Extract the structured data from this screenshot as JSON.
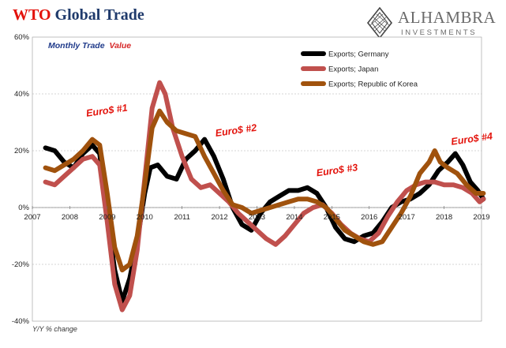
{
  "header": {
    "title_part1": "WTO",
    "title_part2": "Global Trade"
  },
  "logo": {
    "name": "ALHAMBRA",
    "tagline": "INVESTMENTS"
  },
  "subtitle": {
    "part1": "Monthly Trade",
    "part2": "Value",
    "colors": {
      "part1": "#1f3a8a",
      "part2": "#d62728"
    }
  },
  "footnote": "Y/Y % change",
  "chart_data": {
    "type": "line",
    "title": "WTO Global Trade",
    "subtitle": "Monthly Trade Value",
    "ylabel": "Y/Y % change",
    "xlabel": "",
    "xlim": [
      2007,
      2019
    ],
    "ylim": [
      -40,
      60
    ],
    "x_ticks": [
      "2007",
      "2008",
      "2009",
      "2010",
      "2011",
      "2012",
      "2013",
      "2014",
      "2015",
      "2016",
      "2017",
      "2018",
      "2019"
    ],
    "x_tick_values": [
      2007,
      2008,
      2009,
      2010,
      2011,
      2012,
      2013,
      2014,
      2015,
      2016,
      2017,
      2018,
      2019
    ],
    "y_ticks": [
      "-40%",
      "-20%",
      "0%",
      "20%",
      "40%",
      "60%"
    ],
    "y_tick_values": [
      -40,
      -20,
      0,
      20,
      40,
      60
    ],
    "grid": "horizontal dashed",
    "legend_position": "top-right",
    "series": [
      {
        "name": "Exports; Germany",
        "color": "#000000",
        "points": [
          [
            2007.35,
            21
          ],
          [
            2007.6,
            20
          ],
          [
            2007.85,
            16
          ],
          [
            2008.1,
            14
          ],
          [
            2008.35,
            19
          ],
          [
            2008.6,
            22
          ],
          [
            2008.8,
            19
          ],
          [
            2009.0,
            -3
          ],
          [
            2009.2,
            -22
          ],
          [
            2009.4,
            -33
          ],
          [
            2009.6,
            -25
          ],
          [
            2009.8,
            -12
          ],
          [
            2010.0,
            5
          ],
          [
            2010.15,
            14
          ],
          [
            2010.35,
            15
          ],
          [
            2010.6,
            11
          ],
          [
            2010.85,
            10
          ],
          [
            2011.1,
            17
          ],
          [
            2011.35,
            20
          ],
          [
            2011.6,
            24
          ],
          [
            2011.85,
            18
          ],
          [
            2012.1,
            10
          ],
          [
            2012.35,
            0
          ],
          [
            2012.6,
            -6
          ],
          [
            2012.85,
            -8
          ],
          [
            2013.1,
            -2
          ],
          [
            2013.35,
            2
          ],
          [
            2013.6,
            4
          ],
          [
            2013.85,
            6
          ],
          [
            2014.1,
            6
          ],
          [
            2014.35,
            7
          ],
          [
            2014.6,
            5
          ],
          [
            2014.85,
            0
          ],
          [
            2015.1,
            -7
          ],
          [
            2015.35,
            -11
          ],
          [
            2015.6,
            -12
          ],
          [
            2015.85,
            -10
          ],
          [
            2016.1,
            -9
          ],
          [
            2016.35,
            -5
          ],
          [
            2016.6,
            0
          ],
          [
            2016.85,
            2
          ],
          [
            2017.1,
            3
          ],
          [
            2017.35,
            5
          ],
          [
            2017.6,
            8
          ],
          [
            2017.85,
            13
          ],
          [
            2018.1,
            16
          ],
          [
            2018.3,
            19
          ],
          [
            2018.5,
            15
          ],
          [
            2018.7,
            9
          ],
          [
            2018.9,
            6
          ],
          [
            2019.05,
            3
          ]
        ]
      },
      {
        "name": "Exports; Japan",
        "color": "#c0504d",
        "points": [
          [
            2007.35,
            9
          ],
          [
            2007.6,
            8
          ],
          [
            2007.85,
            11
          ],
          [
            2008.1,
            14
          ],
          [
            2008.35,
            17
          ],
          [
            2008.6,
            18
          ],
          [
            2008.8,
            15
          ],
          [
            2009.0,
            -5
          ],
          [
            2009.2,
            -27
          ],
          [
            2009.4,
            -36
          ],
          [
            2009.6,
            -31
          ],
          [
            2009.8,
            -15
          ],
          [
            2010.0,
            10
          ],
          [
            2010.2,
            35
          ],
          [
            2010.4,
            44
          ],
          [
            2010.55,
            40
          ],
          [
            2010.75,
            28
          ],
          [
            2011.0,
            18
          ],
          [
            2011.25,
            10
          ],
          [
            2011.5,
            7
          ],
          [
            2011.75,
            8
          ],
          [
            2012.0,
            5
          ],
          [
            2012.25,
            2
          ],
          [
            2012.5,
            -2
          ],
          [
            2012.75,
            -5
          ],
          [
            2013.0,
            -8
          ],
          [
            2013.25,
            -11
          ],
          [
            2013.5,
            -13
          ],
          [
            2013.75,
            -10
          ],
          [
            2014.0,
            -6
          ],
          [
            2014.25,
            -2
          ],
          [
            2014.5,
            0
          ],
          [
            2014.75,
            1
          ],
          [
            2015.0,
            -2
          ],
          [
            2015.25,
            -6
          ],
          [
            2015.5,
            -9
          ],
          [
            2015.75,
            -11
          ],
          [
            2016.0,
            -12
          ],
          [
            2016.25,
            -9
          ],
          [
            2016.5,
            -3
          ],
          [
            2016.75,
            2
          ],
          [
            2017.0,
            6
          ],
          [
            2017.25,
            8
          ],
          [
            2017.5,
            9
          ],
          [
            2017.75,
            9
          ],
          [
            2018.0,
            8
          ],
          [
            2018.25,
            8
          ],
          [
            2018.5,
            7
          ],
          [
            2018.75,
            5
          ],
          [
            2018.95,
            2
          ],
          [
            2019.05,
            3
          ]
        ]
      },
      {
        "name": "Exports; Republic of Korea",
        "color": "#a0520d",
        "points": [
          [
            2007.35,
            14
          ],
          [
            2007.6,
            13
          ],
          [
            2007.85,
            15
          ],
          [
            2008.1,
            17
          ],
          [
            2008.35,
            20
          ],
          [
            2008.6,
            24
          ],
          [
            2008.8,
            22
          ],
          [
            2009.0,
            5
          ],
          [
            2009.2,
            -14
          ],
          [
            2009.4,
            -22
          ],
          [
            2009.6,
            -20
          ],
          [
            2009.8,
            -10
          ],
          [
            2010.0,
            8
          ],
          [
            2010.2,
            28
          ],
          [
            2010.4,
            34
          ],
          [
            2010.6,
            30
          ],
          [
            2010.85,
            27
          ],
          [
            2011.1,
            26
          ],
          [
            2011.35,
            25
          ],
          [
            2011.6,
            18
          ],
          [
            2011.85,
            12
          ],
          [
            2012.1,
            6
          ],
          [
            2012.35,
            1
          ],
          [
            2012.6,
            0
          ],
          [
            2012.85,
            -2
          ],
          [
            2013.1,
            -1
          ],
          [
            2013.35,
            0
          ],
          [
            2013.6,
            1
          ],
          [
            2013.85,
            2
          ],
          [
            2014.1,
            3
          ],
          [
            2014.35,
            3
          ],
          [
            2014.6,
            2
          ],
          [
            2014.85,
            0
          ],
          [
            2015.1,
            -4
          ],
          [
            2015.35,
            -8
          ],
          [
            2015.6,
            -10
          ],
          [
            2015.85,
            -12
          ],
          [
            2016.1,
            -13
          ],
          [
            2016.35,
            -12
          ],
          [
            2016.6,
            -7
          ],
          [
            2016.85,
            -2
          ],
          [
            2017.1,
            4
          ],
          [
            2017.35,
            12
          ],
          [
            2017.6,
            16
          ],
          [
            2017.75,
            20
          ],
          [
            2017.9,
            16
          ],
          [
            2018.1,
            14
          ],
          [
            2018.35,
            12
          ],
          [
            2018.6,
            8
          ],
          [
            2018.85,
            5
          ],
          [
            2019.05,
            5
          ]
        ]
      }
    ],
    "annotations": [
      {
        "text": "Euro$ #1",
        "x": 2008.45,
        "y": 32
      },
      {
        "text": "Euro$ #2",
        "x": 2011.9,
        "y": 25
      },
      {
        "text": "Euro$ #3",
        "x": 2014.6,
        "y": 11
      },
      {
        "text": "Euro$ #4",
        "x": 2018.2,
        "y": 22
      }
    ],
    "annotation_color": "#e3120b"
  }
}
